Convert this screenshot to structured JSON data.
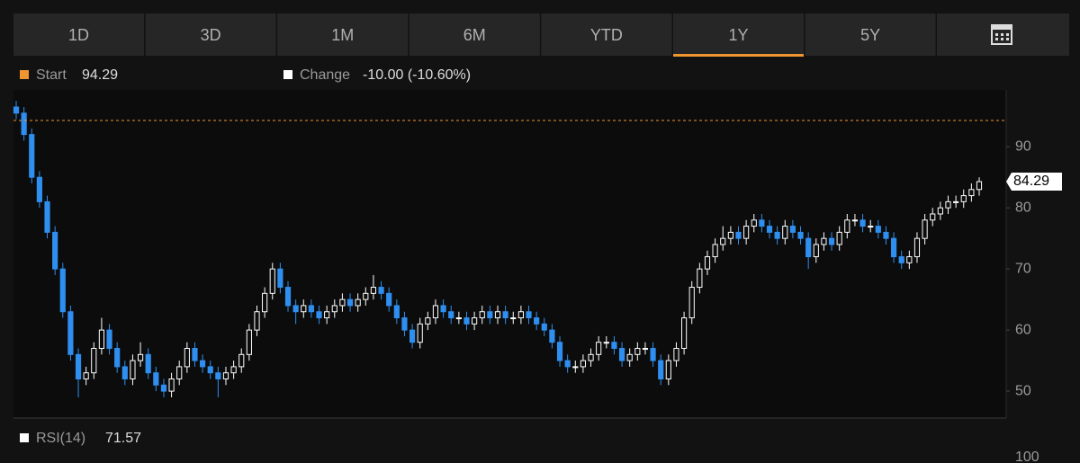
{
  "tabs": [
    "1D",
    "3D",
    "1M",
    "6M",
    "YTD",
    "1Y",
    "5Y"
  ],
  "active_tab": "1Y",
  "chart_data": {
    "type": "candlestick",
    "start_label": "Start",
    "start": 94.29,
    "start_color": "#f0952f",
    "change_label": "Change",
    "change": "-10.00 (-10.60%)",
    "up_color": "#ffffff",
    "down_color": "#2e8ff0",
    "ylim": [
      45.6,
      99.3
    ],
    "yticks": [
      50,
      60,
      70,
      80,
      90
    ],
    "grid": false,
    "open": [
      96.5,
      95.5,
      92,
      85,
      81,
      76,
      70,
      63,
      56,
      52,
      53,
      57,
      60,
      57,
      54,
      52,
      55,
      56,
      53,
      51,
      50,
      52,
      54,
      57,
      55,
      54,
      53,
      52,
      53,
      54,
      56,
      60,
      63,
      66,
      70,
      67,
      64,
      63,
      64,
      63,
      62,
      63,
      64,
      65,
      64,
      65,
      66,
      67,
      66,
      64,
      62,
      60,
      58,
      61,
      62,
      64,
      63,
      62,
      62,
      61,
      62,
      63,
      62,
      63,
      62,
      62,
      63,
      62,
      61,
      60,
      58,
      55,
      54,
      54,
      55,
      56,
      58,
      58,
      57,
      55,
      56,
      57,
      57,
      55,
      52,
      55,
      57,
      62,
      67,
      70,
      72,
      74,
      75,
      76,
      75,
      77,
      78,
      77,
      76,
      75,
      77,
      76,
      75,
      72,
      74,
      75,
      74,
      76,
      78,
      78,
      77,
      77,
      76,
      75,
      72,
      71,
      72,
      75,
      78,
      79,
      80,
      81,
      81,
      82,
      83
    ],
    "close": [
      95.5,
      92,
      85,
      81,
      76,
      70,
      63,
      56,
      52,
      53,
      57,
      60,
      57,
      54,
      52,
      55,
      56,
      53,
      51,
      50,
      52,
      54,
      57,
      55,
      54,
      53,
      52,
      53,
      54,
      56,
      60,
      63,
      66,
      70,
      67,
      64,
      63,
      64,
      63,
      62,
      63,
      64,
      65,
      64,
      65,
      66,
      67,
      66,
      64,
      62,
      60,
      58,
      61,
      62,
      64,
      63,
      62,
      62,
      61,
      62,
      63,
      62,
      63,
      62,
      62,
      63,
      62,
      61,
      60,
      58,
      55,
      54,
      54,
      55,
      56,
      58,
      58,
      57,
      55,
      56,
      57,
      57,
      55,
      52,
      55,
      57,
      62,
      67,
      70,
      72,
      74,
      75,
      76,
      75,
      77,
      78,
      77,
      76,
      75,
      77,
      76,
      75,
      72,
      74,
      75,
      74,
      76,
      78,
      78,
      77,
      77,
      76,
      75,
      72,
      71,
      72,
      75,
      78,
      79,
      80,
      81,
      81,
      82,
      83,
      84.29
    ],
    "high": [
      97.5,
      96.5,
      93,
      86,
      82,
      77,
      71,
      64,
      57,
      54,
      58,
      62,
      61,
      58,
      55,
      56,
      58,
      57,
      54,
      52,
      53,
      55,
      58,
      58,
      56,
      55,
      54,
      54,
      55,
      57,
      61,
      64,
      67,
      71,
      71,
      68,
      65,
      65,
      65,
      64,
      64,
      65,
      66,
      66,
      66,
      67,
      69,
      68,
      67,
      65,
      63,
      61,
      62,
      63,
      65,
      65,
      64,
      63,
      63,
      63,
      64,
      64,
      64,
      64,
      63,
      64,
      64,
      63,
      62,
      61,
      59,
      56,
      55,
      56,
      57,
      59,
      59,
      59,
      58,
      57,
      58,
      58,
      58,
      56,
      56,
      58,
      63,
      68,
      71,
      73,
      75,
      77,
      77,
      77,
      78,
      79,
      79,
      78,
      77,
      78,
      78,
      77,
      76,
      75,
      76,
      76,
      77,
      79,
      79,
      79,
      78,
      78,
      77,
      76,
      73,
      73,
      76,
      79,
      80,
      81,
      82,
      82,
      83,
      84,
      85
    ],
    "low": [
      94.5,
      91,
      84,
      80,
      75,
      69,
      62,
      55,
      49,
      51,
      52,
      56,
      56,
      53,
      51,
      51,
      54,
      52,
      50,
      49,
      49,
      51,
      53,
      54,
      53,
      52,
      49,
      51,
      52,
      53,
      55,
      59,
      62,
      65,
      66,
      63,
      61,
      62,
      62,
      61,
      61,
      62,
      63,
      63,
      63,
      64,
      65,
      65,
      63,
      61,
      59,
      57,
      57,
      60,
      61,
      62,
      61,
      61,
      60,
      60,
      61,
      61,
      61,
      61,
      61,
      61,
      61,
      60,
      59,
      57,
      54,
      53,
      53,
      53,
      54,
      55,
      57,
      56,
      54,
      54,
      55,
      56,
      54,
      51,
      51,
      54,
      56,
      61,
      66,
      69,
      71,
      73,
      74,
      74,
      74,
      76,
      76,
      75,
      74,
      74,
      75,
      74,
      70,
      71,
      73,
      73,
      73,
      75,
      77,
      76,
      76,
      75,
      74,
      71,
      70,
      70,
      71,
      74,
      77,
      78,
      79,
      80,
      80,
      81,
      82
    ]
  },
  "rsi": {
    "label": "RSI(14)",
    "value": 71.57,
    "yticks": [
      100
    ]
  }
}
